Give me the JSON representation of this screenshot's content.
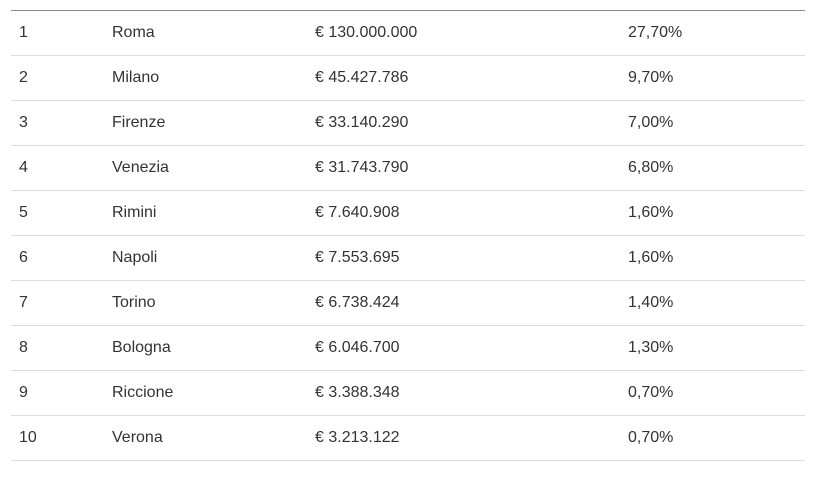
{
  "table": {
    "rows": [
      {
        "rank": "1",
        "city": "Roma",
        "amount": "€ 130.000.000",
        "percent": "27,70%"
      },
      {
        "rank": "2",
        "city": "Milano",
        "amount": "€ 45.427.786",
        "percent": "9,70%"
      },
      {
        "rank": "3",
        "city": "Firenze",
        "amount": "€ 33.140.290",
        "percent": "7,00%"
      },
      {
        "rank": "4",
        "city": "Venezia",
        "amount": "€ 31.743.790",
        "percent": "6,80%"
      },
      {
        "rank": "5",
        "city": "Rimini",
        "amount": "€ 7.640.908",
        "percent": "1,60%"
      },
      {
        "rank": "6",
        "city": "Napoli",
        "amount": "€ 7.553.695",
        "percent": "1,60%"
      },
      {
        "rank": "7",
        "city": "Torino",
        "amount": "€ 6.738.424",
        "percent": "1,40%"
      },
      {
        "rank": "8",
        "city": "Bologna",
        "amount": "€ 6.046.700",
        "percent": "1,30%"
      },
      {
        "rank": "9",
        "city": "Riccione",
        "amount": "€ 3.388.348",
        "percent": "0,70%"
      },
      {
        "rank": "10",
        "city": "Verona",
        "amount": "€ 3.213.122",
        "percent": "0,70%"
      }
    ]
  }
}
